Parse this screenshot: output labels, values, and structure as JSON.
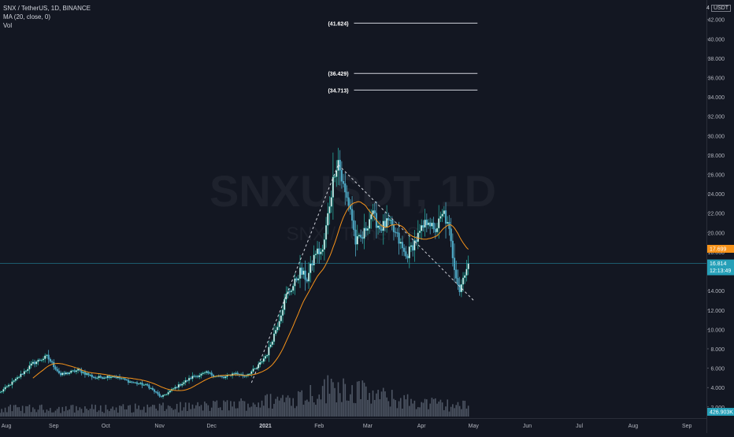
{
  "legend": {
    "symbol_line": "SNX / TetherUS, 1D, BINANCE",
    "ma_line": "MA (20, close, 0)",
    "vol_line": "Vol"
  },
  "watermark": {
    "main": "SNXUSDT, 1D",
    "sub": "SNX / TetherUS"
  },
  "price_scale": {
    "unit_prefix": "4",
    "unit": "USDT",
    "ticks": [
      "42.000",
      "40.000",
      "38.000",
      "36.000",
      "34.000",
      "32.000",
      "30.000",
      "28.000",
      "26.000",
      "24.000",
      "22.000",
      "20.000",
      "18.000",
      "16.000",
      "14.000",
      "12.000",
      "10.000",
      "8.000",
      "6.000",
      "4.000",
      "2.000"
    ]
  },
  "time_scale": {
    "labels": [
      "Aug",
      "Sep",
      "Oct",
      "Nov",
      "Dec",
      "2021",
      "Feb",
      "Mar",
      "Apr",
      "May",
      "Jun",
      "Jul",
      "Aug",
      "Sep"
    ]
  },
  "badges": {
    "ma_value": "17.699",
    "last_price": "16.814",
    "countdown": "12:13:49",
    "volume": "426.903K"
  },
  "levels": [
    {
      "label": "(41.624)",
      "value": 41.624
    },
    {
      "label": "(36.429)",
      "value": 36.429
    },
    {
      "label": "(34.713)",
      "value": 34.713
    }
  ],
  "colors": {
    "background": "#131722",
    "up": "#26a69a",
    "up_body": "#e6f2f1",
    "down": "#4ea8c4",
    "ma": "#f7931a",
    "last_price": "#26a0b8",
    "ma_badge": "#f7931a",
    "volume": "#596170",
    "trendline": "#d1d4dc",
    "level_line": "#d1d4dc"
  },
  "chart_data": {
    "type": "candlestick",
    "title": "SNX / TetherUS, 1D, BINANCE",
    "ylabel": "USDT",
    "ylim": [
      0,
      43
    ],
    "x_range": [
      "2020-08-01",
      "2021-09-10"
    ],
    "series": [
      {
        "name": "SNX / TetherUS",
        "close_waypoints": [
          [
            "2020-08-01",
            3.5
          ],
          [
            "2020-08-10",
            4.8
          ],
          [
            "2020-08-20",
            6.5
          ],
          [
            "2020-08-28",
            7.2
          ],
          [
            "2020-09-05",
            5.3
          ],
          [
            "2020-09-15",
            5.8
          ],
          [
            "2020-09-25",
            5.0
          ],
          [
            "2020-10-05",
            5.2
          ],
          [
            "2020-10-15",
            4.6
          ],
          [
            "2020-10-25",
            4.2
          ],
          [
            "2020-11-02",
            3.0
          ],
          [
            "2020-11-10",
            4.0
          ],
          [
            "2020-11-20",
            5.1
          ],
          [
            "2020-11-28",
            5.5
          ],
          [
            "2020-12-08",
            5.0
          ],
          [
            "2020-12-14",
            5.5
          ],
          [
            "2020-12-20",
            5.2
          ],
          [
            "2020-12-27",
            6.0
          ],
          [
            "2021-01-02",
            7.5
          ],
          [
            "2021-01-08",
            10.5
          ],
          [
            "2021-01-13",
            13.5
          ],
          [
            "2021-01-17",
            14.5
          ],
          [
            "2021-01-21",
            16.0
          ],
          [
            "2021-01-25",
            15.2
          ],
          [
            "2021-01-30",
            18.0
          ],
          [
            "2021-02-03",
            18.0
          ],
          [
            "2021-02-07",
            23.0
          ],
          [
            "2021-02-10",
            26.5
          ],
          [
            "2021-02-12",
            27.5
          ],
          [
            "2021-02-14",
            25.5
          ],
          [
            "2021-02-16",
            24.0
          ],
          [
            "2021-02-19",
            22.5
          ],
          [
            "2021-02-22",
            19.0
          ],
          [
            "2021-02-26",
            19.5
          ],
          [
            "2021-03-03",
            22.0
          ],
          [
            "2021-03-08",
            20.5
          ],
          [
            "2021-03-13",
            21.0
          ],
          [
            "2021-03-18",
            19.5
          ],
          [
            "2021-03-23",
            17.5
          ],
          [
            "2021-03-28",
            19.0
          ],
          [
            "2021-04-02",
            20.5
          ],
          [
            "2021-04-05",
            21.5
          ],
          [
            "2021-04-08",
            20.0
          ],
          [
            "2021-04-11",
            21.0
          ],
          [
            "2021-04-14",
            22.0
          ],
          [
            "2021-04-17",
            20.0
          ],
          [
            "2021-04-20",
            16.5
          ],
          [
            "2021-04-23",
            14.0
          ],
          [
            "2021-04-26",
            16.0
          ],
          [
            "2021-04-28",
            16.8
          ]
        ]
      },
      {
        "name": "MA (20, close, 0)",
        "computed_from": "close",
        "period": 20
      },
      {
        "name": "Vol",
        "approx_peak": "2021-02-12"
      }
    ],
    "annotations": [
      {
        "type": "trendline",
        "from": [
          "2020-12-24",
          4.5
        ],
        "to": [
          "2021-02-12",
          27.0
        ]
      },
      {
        "type": "trendline",
        "from": [
          "2021-02-12",
          27.0
        ],
        "to": [
          "2021-05-01",
          13.0
        ]
      },
      {
        "type": "horizontal_ray",
        "label": "(41.624)",
        "value": 41.624,
        "from": "2021-02-12",
        "to": "2021-05-01"
      },
      {
        "type": "horizontal_ray",
        "label": "(36.429)",
        "value": 36.429,
        "from": "2021-02-12",
        "to": "2021-05-01"
      },
      {
        "type": "horizontal_ray",
        "label": "(34.713)",
        "value": 34.713,
        "from": "2021-02-12",
        "to": "2021-05-01"
      }
    ],
    "last_price": 16.814,
    "ma_last": 17.699,
    "grid": false,
    "legend_position": "top-left"
  }
}
